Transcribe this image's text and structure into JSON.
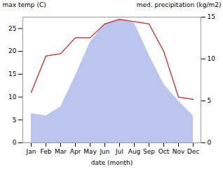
{
  "chart_data": {
    "type": "line",
    "categories": [
      "Jan",
      "Feb",
      "Mar",
      "Apr",
      "May",
      "Jun",
      "Jul",
      "Aug",
      "Sep",
      "Oct",
      "Nov",
      "Dec"
    ],
    "series": [
      {
        "type": "area",
        "axis": "y2",
        "color": "#bbc5ee",
        "values": [
          3.5,
          3.2,
          4.3,
          8.0,
          12.0,
          14.2,
          14.8,
          14.3,
          10.5,
          7.0,
          5.0,
          3.2
        ]
      },
      {
        "type": "line",
        "color": "#cc4444",
        "values": [
          11,
          19,
          19.5,
          23,
          23,
          26,
          27,
          26.5,
          26,
          20,
          10,
          9.5
        ]
      }
    ],
    "xlabel": "date (month)",
    "ylabel": "max temp (C)",
    "y2label": "med. precipitation (kg/m2)",
    "ylim": [
      0,
      27.5
    ],
    "yticks": [
      0,
      5,
      10,
      15,
      20,
      25
    ],
    "y2lim": [
      0,
      15
    ],
    "y2ticks": [
      0,
      5,
      10,
      15
    ],
    "grid": false
  }
}
